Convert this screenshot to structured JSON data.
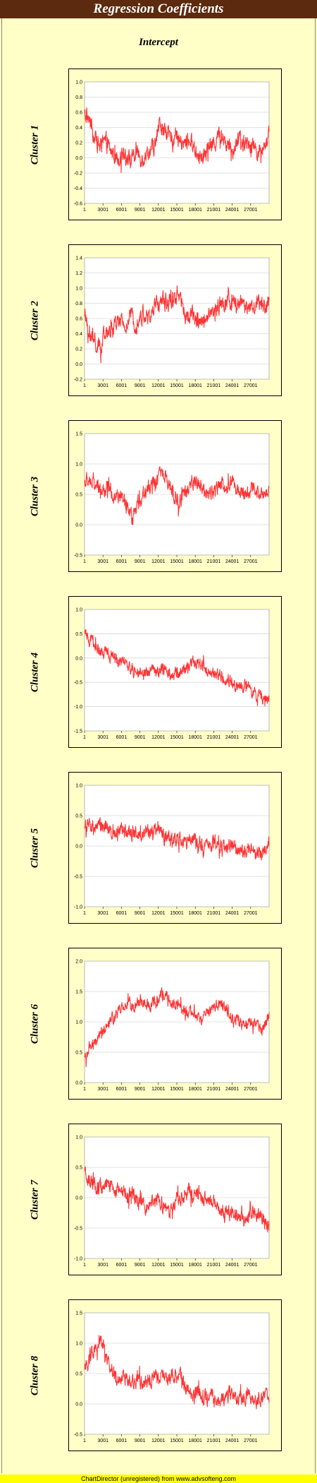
{
  "page": {
    "title": "Regression Coefficients",
    "subtitle": "Intercept",
    "footer": "ChartDirector (unregistered) from www.advsofteng.com"
  },
  "colors": {
    "line": "#ff3333",
    "plot_bg": "#ffffff",
    "panel_bg": "#ffffc8",
    "banner": "#5c2a0e"
  },
  "chart_data": [
    {
      "type": "line",
      "title": "Cluster 1",
      "x_ticks": [
        "1",
        "3001",
        "6001",
        "9001",
        "12001",
        "15001",
        "18001",
        "21001",
        "24001",
        "27001"
      ],
      "x_range": [
        1,
        30000
      ],
      "ylim": [
        -0.6,
        1.0
      ],
      "y_ticks": [
        "-0.6",
        "-0.4",
        "-0.2",
        "0.0",
        "0.2",
        "0.4",
        "0.6",
        "0.8",
        "1.0"
      ],
      "series": [
        {
          "x": [
            1,
            800,
            1500,
            2500,
            3500,
            4500,
            5500,
            6500,
            7500,
            8500,
            9500,
            10500,
            11500,
            12200,
            13000,
            14000,
            15000,
            16000,
            17000,
            18000,
            19000,
            20000,
            21000,
            22000,
            23000,
            24000,
            25000,
            26000,
            27000,
            28000,
            29000,
            30000
          ],
          "values": [
            0.55,
            0.5,
            0.3,
            0.15,
            0.2,
            0.05,
            0.0,
            0.1,
            -0.05,
            0.05,
            0.0,
            0.1,
            0.15,
            0.45,
            0.35,
            0.25,
            0.3,
            0.15,
            0.25,
            0.1,
            0.0,
            0.1,
            0.2,
            0.3,
            0.2,
            0.1,
            0.25,
            0.15,
            0.2,
            0.1,
            0.05,
            0.35
          ]
        }
      ],
      "noise": 0.09
    },
    {
      "type": "line",
      "title": "Cluster 2",
      "x_ticks": [
        "1",
        "3001",
        "6001",
        "9001",
        "12001",
        "15001",
        "18001",
        "21001",
        "24001",
        "27001"
      ],
      "x_range": [
        1,
        30000
      ],
      "ylim": [
        -0.2,
        1.4
      ],
      "y_ticks": [
        "-0.2",
        "0.0",
        "0.2",
        "0.4",
        "0.6",
        "0.8",
        "1.0",
        "1.2",
        "1.4"
      ],
      "series": [
        {
          "x": [
            1,
            500,
            1500,
            2500,
            3500,
            4500,
            5500,
            6500,
            7500,
            8500,
            9500,
            10500,
            11500,
            12500,
            13500,
            14500,
            15500,
            16500,
            17500,
            18500,
            19500,
            20500,
            21500,
            22500,
            23500,
            24500,
            25500,
            26500,
            27500,
            28500,
            29500,
            30000
          ],
          "values": [
            0.7,
            0.4,
            0.3,
            0.2,
            0.4,
            0.45,
            0.55,
            0.5,
            0.6,
            0.55,
            0.65,
            0.6,
            0.75,
            0.85,
            0.8,
            0.9,
            0.85,
            0.6,
            0.65,
            0.55,
            0.6,
            0.7,
            0.75,
            0.8,
            0.85,
            0.75,
            0.8,
            0.7,
            0.75,
            0.8,
            0.75,
            0.8
          ]
        }
      ],
      "noise": 0.09
    },
    {
      "type": "line",
      "title": "Cluster 3",
      "x_ticks": [
        "1",
        "3001",
        "6001",
        "9001",
        "12001",
        "15001",
        "18001",
        "21001",
        "24001",
        "27001"
      ],
      "x_range": [
        1,
        30000
      ],
      "ylim": [
        -0.5,
        1.5
      ],
      "y_ticks": [
        "-0.5",
        "0.0",
        "0.5",
        "1.0",
        "1.5"
      ],
      "series": [
        {
          "x": [
            1,
            1000,
            2000,
            3000,
            4000,
            5000,
            6000,
            7000,
            7800,
            8500,
            9500,
            10500,
            11500,
            12500,
            13500,
            14500,
            15300,
            16000,
            17000,
            18000,
            19000,
            20000,
            21000,
            22000,
            23000,
            24000,
            25000,
            26000,
            27000,
            28000,
            29000,
            30000
          ],
          "values": [
            0.7,
            0.75,
            0.6,
            0.55,
            0.6,
            0.45,
            0.45,
            0.25,
            0.05,
            0.3,
            0.5,
            0.6,
            0.7,
            0.85,
            0.7,
            0.55,
            0.3,
            0.5,
            0.6,
            0.75,
            0.65,
            0.5,
            0.55,
            0.7,
            0.6,
            0.7,
            0.6,
            0.5,
            0.55,
            0.6,
            0.5,
            0.6
          ]
        }
      ],
      "noise": 0.1
    },
    {
      "type": "line",
      "title": "Cluster 4",
      "x_ticks": [
        "1",
        "3001",
        "6001",
        "9001",
        "12001",
        "15001",
        "18001",
        "21001",
        "24001",
        "27001"
      ],
      "x_range": [
        1,
        30000
      ],
      "ylim": [
        -1.5,
        1.0
      ],
      "y_ticks": [
        "-1.5",
        "-1.0",
        "-0.5",
        "0.0",
        "0.5",
        "1.0"
      ],
      "series": [
        {
          "x": [
            1,
            1000,
            2000,
            3000,
            4000,
            5000,
            6000,
            7000,
            8000,
            9000,
            10000,
            11000,
            12000,
            13000,
            14000,
            15000,
            16000,
            17000,
            18000,
            19000,
            20000,
            21000,
            22000,
            23000,
            24000,
            25000,
            26000,
            27000,
            28000,
            29000,
            30000
          ],
          "values": [
            0.45,
            0.4,
            0.2,
            0.1,
            0.05,
            0.0,
            -0.05,
            -0.15,
            -0.3,
            -0.35,
            -0.3,
            -0.2,
            -0.3,
            -0.25,
            -0.3,
            -0.35,
            -0.25,
            -0.15,
            -0.05,
            -0.15,
            -0.25,
            -0.3,
            -0.35,
            -0.45,
            -0.5,
            -0.6,
            -0.55,
            -0.7,
            -0.75,
            -0.8,
            -0.85
          ]
        }
      ],
      "noise": 0.1
    },
    {
      "type": "line",
      "title": "Cluster 5",
      "x_ticks": [
        "1",
        "3001",
        "6001",
        "9001",
        "12001",
        "15001",
        "18001",
        "21001",
        "24001",
        "27001"
      ],
      "x_range": [
        1,
        30000
      ],
      "ylim": [
        -1.0,
        1.0
      ],
      "y_ticks": [
        "-1.0",
        "-0.5",
        "0.0",
        "0.5",
        "1.0"
      ],
      "series": [
        {
          "x": [
            1,
            1500,
            3000,
            4500,
            6000,
            7500,
            9000,
            10500,
            12000,
            13500,
            15000,
            16500,
            18000,
            19500,
            21000,
            22500,
            24000,
            25500,
            27000,
            28500,
            30000
          ],
          "values": [
            0.35,
            0.3,
            0.35,
            0.25,
            0.3,
            0.2,
            0.25,
            0.2,
            0.25,
            0.1,
            0.15,
            0.05,
            0.1,
            0.0,
            0.05,
            -0.05,
            0.0,
            -0.1,
            -0.05,
            -0.15,
            0.0
          ]
        }
      ],
      "noise": 0.1
    },
    {
      "type": "line",
      "title": "Cluster 6",
      "x_ticks": [
        "1",
        "3001",
        "6001",
        "9001",
        "12001",
        "15001",
        "18001",
        "21001",
        "24001",
        "27001"
      ],
      "x_range": [
        1,
        30000
      ],
      "ylim": [
        0.0,
        2.0
      ],
      "y_ticks": [
        "0.0",
        "0.5",
        "1.0",
        "1.5",
        "2.0"
      ],
      "series": [
        {
          "x": [
            1,
            1000,
            2000,
            3000,
            4000,
            5000,
            6000,
            7000,
            8000,
            9000,
            10000,
            11000,
            12000,
            13000,
            14000,
            15000,
            16000,
            17000,
            18000,
            19000,
            20000,
            21000,
            22000,
            23000,
            24000,
            25000,
            26000,
            27000,
            28000,
            29000,
            30000
          ],
          "values": [
            0.4,
            0.6,
            0.7,
            0.85,
            1.0,
            1.1,
            1.25,
            1.3,
            1.25,
            1.35,
            1.3,
            1.25,
            1.4,
            1.45,
            1.35,
            1.3,
            1.2,
            1.15,
            1.1,
            1.0,
            1.2,
            1.25,
            1.3,
            1.2,
            1.1,
            1.05,
            0.9,
            1.0,
            0.95,
            0.9,
            1.1
          ]
        }
      ],
      "noise": 0.08
    },
    {
      "type": "line",
      "title": "Cluster 7",
      "x_ticks": [
        "1",
        "3001",
        "6001",
        "9001",
        "12001",
        "15001",
        "18001",
        "21001",
        "24001",
        "27001"
      ],
      "x_range": [
        1,
        30000
      ],
      "ylim": [
        -1.0,
        1.0
      ],
      "y_ticks": [
        "-1.0",
        "-0.5",
        "0.0",
        "0.5",
        "1.0"
      ],
      "series": [
        {
          "x": [
            1,
            1000,
            2000,
            3000,
            4000,
            5000,
            6000,
            7000,
            8000,
            9000,
            10000,
            11000,
            12000,
            13000,
            14000,
            15000,
            16000,
            17000,
            18000,
            19000,
            20000,
            21000,
            22000,
            23000,
            24000,
            25000,
            26000,
            27000,
            28000,
            29000,
            30000
          ],
          "values": [
            0.4,
            0.25,
            0.2,
            0.15,
            0.25,
            0.1,
            0.15,
            0.0,
            0.05,
            -0.1,
            -0.15,
            0.0,
            -0.05,
            -0.15,
            -0.25,
            -0.05,
            0.0,
            0.1,
            0.05,
            0.0,
            -0.1,
            -0.05,
            -0.2,
            -0.3,
            -0.25,
            -0.3,
            -0.35,
            -0.2,
            -0.3,
            -0.35,
            -0.5
          ]
        }
      ],
      "noise": 0.1
    },
    {
      "type": "line",
      "title": "Cluster 8",
      "x_ticks": [
        "1",
        "3001",
        "6001",
        "9001",
        "12001",
        "15001",
        "18001",
        "21001",
        "24001",
        "27001"
      ],
      "x_range": [
        1,
        30000
      ],
      "ylim": [
        -0.5,
        1.5
      ],
      "y_ticks": [
        "-0.5",
        "0.0",
        "0.5",
        "1.0",
        "1.5"
      ],
      "series": [
        {
          "x": [
            1,
            800,
            1600,
            2400,
            3000,
            3800,
            4600,
            5500,
            6500,
            7500,
            8500,
            9500,
            10500,
            11500,
            12500,
            13500,
            14500,
            15500,
            16500,
            17500,
            18500,
            19500,
            20500,
            21500,
            22500,
            23500,
            24500,
            25500,
            26500,
            27500,
            28500,
            29500,
            30000
          ],
          "values": [
            0.6,
            0.75,
            0.9,
            1.0,
            0.95,
            0.7,
            0.5,
            0.4,
            0.45,
            0.35,
            0.4,
            0.4,
            0.35,
            0.45,
            0.5,
            0.4,
            0.45,
            0.55,
            0.2,
            0.15,
            0.2,
            0.1,
            0.15,
            0.05,
            0.1,
            0.15,
            0.05,
            0.1,
            0.15,
            0.1,
            0.05,
            0.1,
            0.15
          ]
        }
      ],
      "noise": 0.1
    }
  ]
}
